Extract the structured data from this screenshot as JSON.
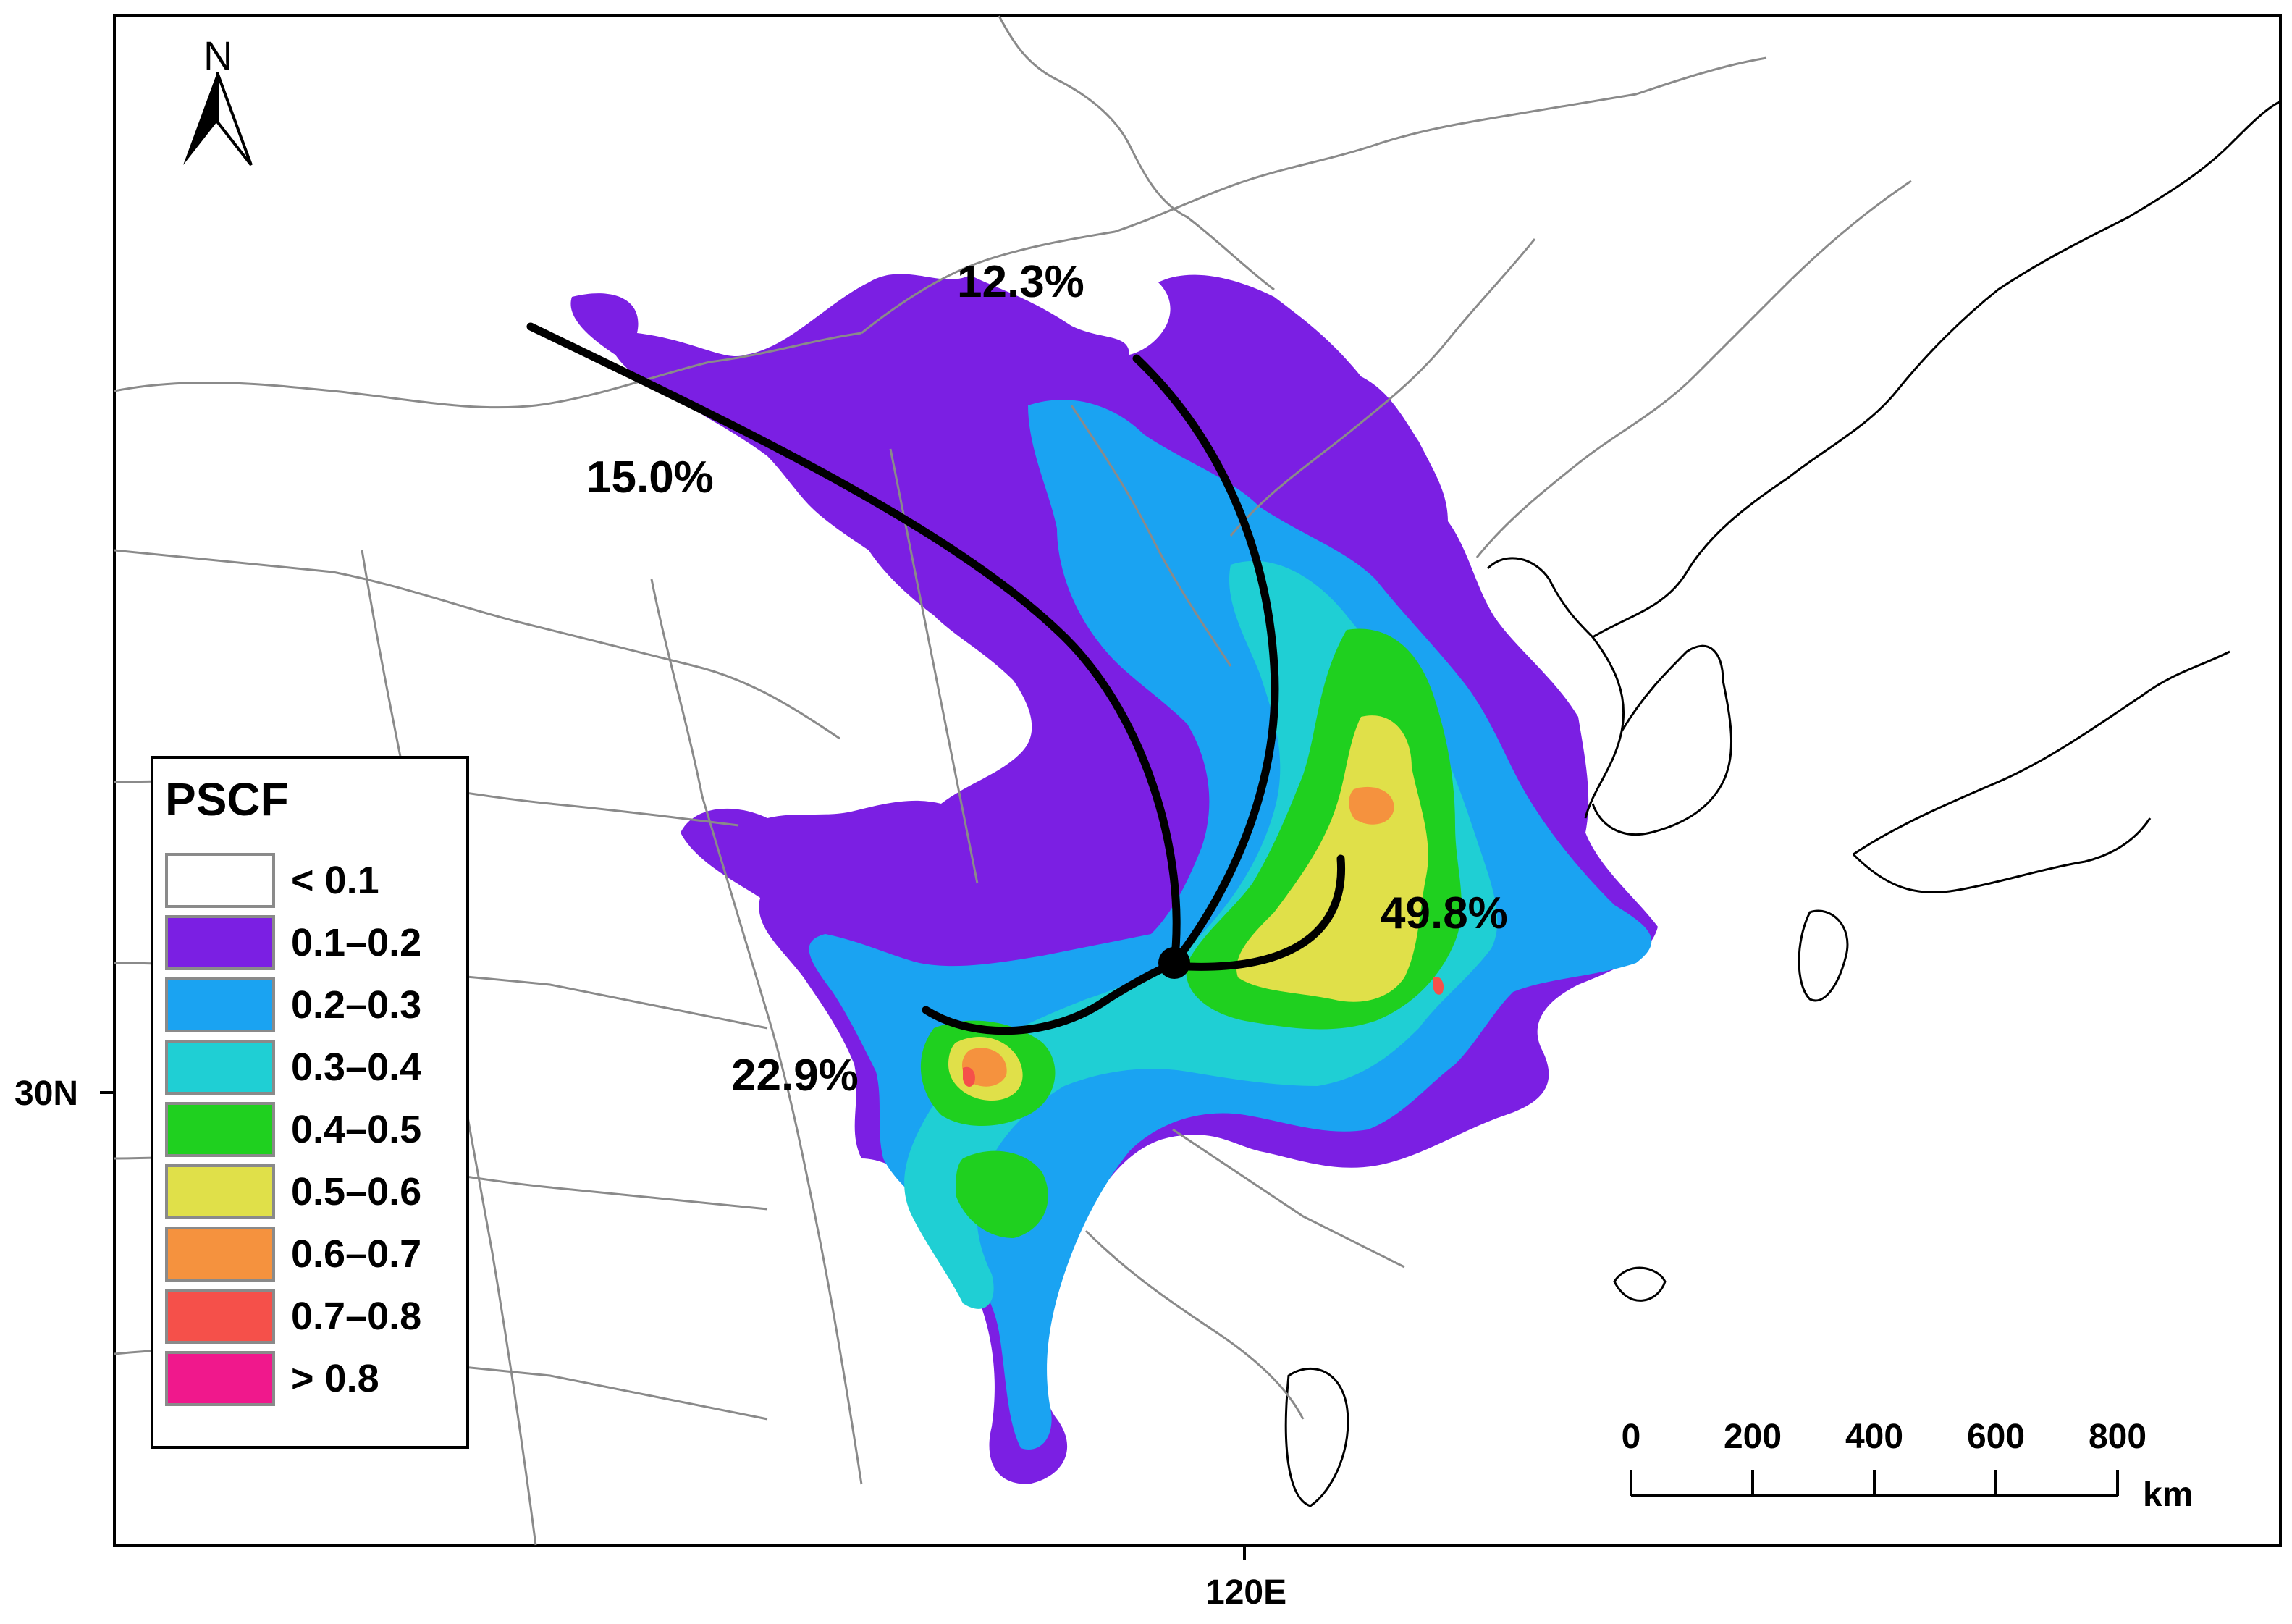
{
  "map": {
    "latitude_label": "30N",
    "longitude_label": "120E",
    "north_label": "N"
  },
  "legend": {
    "title": "PSCF",
    "items": [
      {
        "label": "< 0.1",
        "color": "#ffffff"
      },
      {
        "label": "0.1–0.2",
        "color": "#7b1fe3"
      },
      {
        "label": "0.2–0.3",
        "color": "#1aa3f2"
      },
      {
        "label": "0.3–0.4",
        "color": "#1fcfd4"
      },
      {
        "label": "0.4–0.5",
        "color": "#1fd01f"
      },
      {
        "label": "0.5–0.6",
        "color": "#e0e049"
      },
      {
        "label": "0.6–0.7",
        "color": "#f5923e"
      },
      {
        "label": "0.7–0.8",
        "color": "#f5504a"
      },
      {
        "label": "> 0.8",
        "color": "#f0188c"
      }
    ]
  },
  "clusters": [
    {
      "label": "15.0%"
    },
    {
      "label": "12.3%"
    },
    {
      "label": "49.8%"
    },
    {
      "label": "22.9%"
    }
  ],
  "scale_bar": {
    "ticks": [
      "0",
      "200",
      "400",
      "600",
      "800"
    ],
    "unit": "km"
  }
}
